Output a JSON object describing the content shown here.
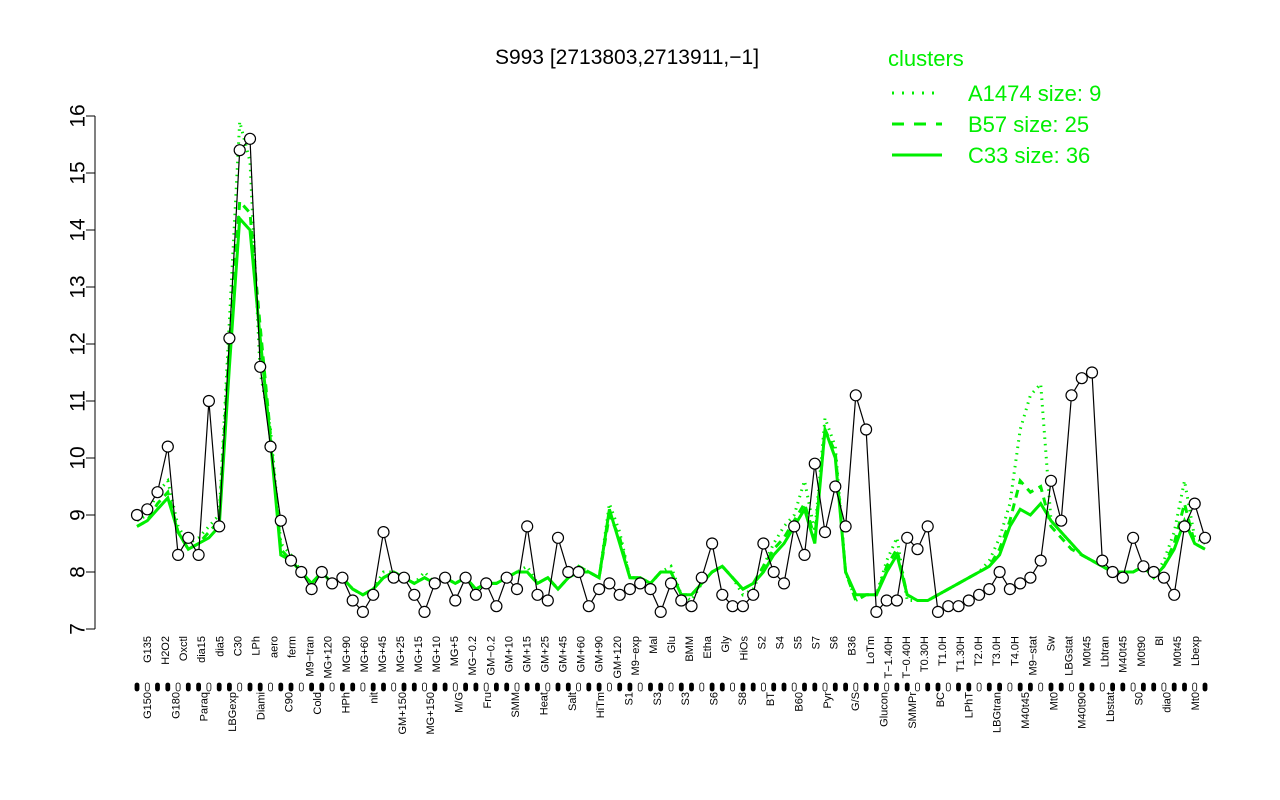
{
  "chart_data": {
    "type": "line",
    "title": "S993 [2713803,2713911,−1]",
    "xlabel": "",
    "ylabel": "",
    "ylim": [
      7,
      16
    ],
    "yticks": [
      7,
      8,
      9,
      10,
      11,
      12,
      13,
      14,
      15,
      16
    ],
    "x_tick_labels_top": [
      "G135",
      "H2O2",
      "Oxctl",
      "dia15",
      "dia5",
      "C30",
      "LPh",
      "aero",
      "ferm",
      "M9−tran",
      "MG+120",
      "MG+90",
      "MG+60",
      "MG+45",
      "MG+25",
      "MG+15",
      "MG+10",
      "MG+5",
      "MG−0.2",
      "GM−0.2",
      "GM+10",
      "GM+15",
      "GM+25",
      "GM+45",
      "GM+60",
      "GM+90",
      "GM+120",
      "M9−exp",
      "Mal",
      "Glu",
      "BMM",
      "Etha",
      "Gly",
      "HiOs",
      "S2",
      "S4",
      "S5",
      "S7",
      "S6",
      "B36",
      "LoTm",
      "T−1.40H",
      "T−0.40H",
      "T0.30H",
      "T1.0H",
      "T1.30H",
      "T2.0H",
      "T3.0H",
      "T4.0H",
      "M9−stat",
      "Sw",
      "LBGstat",
      "M0t45",
      "Lbtran",
      "M40t45",
      "M0t90",
      "Bl",
      "M0t45",
      "Lbexp"
    ],
    "x_tick_labels_bottom": [
      "G150",
      "G180",
      "Paraq",
      "LBGexp",
      "Diami",
      "C90",
      "Cold",
      "HPh",
      "nit",
      "GM+150",
      "MG+150",
      "M/G",
      "Fru",
      "SMM",
      "Heat",
      "Salt",
      "HiTm",
      "S1",
      "S3",
      "S3",
      "S6",
      "S8",
      "BT",
      "B60",
      "Pyr",
      "G/S",
      "Glucon",
      "SMMPr",
      "BC",
      "LPhT",
      "LBGtran",
      "M40t45",
      "Mt0",
      "M40t90",
      "Lbstat",
      "S0",
      "dia0",
      "Mt0"
    ],
    "series": [
      {
        "name": "A1474 size: 9",
        "style": "dotted",
        "values": [
          8.9,
          9.0,
          9.4,
          9.6,
          8.8,
          8.5,
          8.6,
          8.8,
          9.0,
          12.4,
          15.9,
          15.2,
          11.5,
          10.5,
          8.5,
          8.3,
          8.0,
          7.8,
          8.0,
          7.8,
          7.9,
          7.7,
          7.6,
          7.7,
          8.0,
          8.0,
          7.9,
          7.8,
          8.0,
          7.8,
          7.9,
          7.8,
          7.9,
          7.7,
          7.8,
          7.8,
          7.9,
          8.0,
          8.1,
          7.8,
          7.9,
          7.7,
          7.9,
          8.1,
          8.0,
          7.9,
          9.2,
          8.7,
          7.9,
          7.9,
          7.8,
          8.0,
          8.1,
          7.6,
          7.5,
          7.8,
          8.0,
          8.1,
          7.9,
          7.6,
          7.7,
          8.1,
          8.5,
          8.8,
          9.0,
          9.6,
          8.7,
          10.7,
          10.2,
          8.0,
          7.5,
          7.6,
          7.6,
          8.2,
          8.6,
          7.5,
          7.5,
          7.5,
          7.6,
          7.7,
          7.8,
          7.9,
          8.0,
          8.2,
          8.6,
          9.2,
          10.5,
          11.1,
          11.3,
          8.9,
          8.7,
          8.5,
          8.3,
          8.2,
          8.1,
          8.0,
          8.0,
          8.0,
          8.1,
          7.9,
          8.2,
          8.7,
          9.6,
          8.6,
          8.5
        ]
      },
      {
        "name": "B57 size: 25",
        "style": "dashed",
        "values": [
          8.8,
          8.9,
          9.2,
          9.4,
          8.7,
          8.4,
          8.5,
          8.7,
          8.9,
          12.0,
          14.5,
          14.3,
          12.3,
          10.4,
          8.4,
          8.2,
          8.0,
          7.8,
          8.0,
          7.8,
          7.9,
          7.7,
          7.6,
          7.7,
          7.9,
          8.0,
          7.9,
          7.8,
          7.9,
          7.8,
          7.9,
          7.8,
          7.9,
          7.7,
          7.8,
          7.8,
          7.9,
          8.0,
          8.0,
          7.8,
          7.9,
          7.7,
          7.9,
          8.1,
          8.0,
          7.9,
          9.0,
          8.6,
          7.9,
          7.9,
          7.8,
          8.0,
          8.0,
          7.6,
          7.6,
          7.8,
          8.0,
          8.1,
          7.9,
          7.7,
          7.8,
          8.1,
          8.4,
          8.6,
          8.9,
          9.2,
          8.6,
          10.5,
          10.1,
          8.0,
          7.5,
          7.6,
          7.6,
          8.1,
          8.4,
          7.6,
          7.5,
          7.5,
          7.6,
          7.7,
          7.8,
          7.9,
          8.0,
          8.1,
          8.4,
          8.9,
          9.6,
          9.4,
          9.5,
          8.8,
          8.6,
          8.4,
          8.3,
          8.2,
          8.1,
          8.0,
          8.0,
          8.0,
          8.1,
          7.9,
          8.1,
          8.5,
          9.2,
          8.5,
          8.4
        ]
      },
      {
        "name": "C33 size: 36",
        "style": "solid",
        "values": [
          8.8,
          8.9,
          9.1,
          9.3,
          8.7,
          8.4,
          8.5,
          8.6,
          8.8,
          11.6,
          14.2,
          14.0,
          12.1,
          10.3,
          8.3,
          8.2,
          8.0,
          7.8,
          8.0,
          7.8,
          7.9,
          7.7,
          7.6,
          7.7,
          7.9,
          8.0,
          7.9,
          7.8,
          7.9,
          7.8,
          7.9,
          7.8,
          7.9,
          7.7,
          7.8,
          7.8,
          7.9,
          8.0,
          8.0,
          7.8,
          7.9,
          7.7,
          7.9,
          8.0,
          8.0,
          7.9,
          9.1,
          8.5,
          7.9,
          7.9,
          7.8,
          8.0,
          8.0,
          7.6,
          7.6,
          7.8,
          8.0,
          8.1,
          7.9,
          7.7,
          7.8,
          8.0,
          8.3,
          8.5,
          8.8,
          9.1,
          8.5,
          10.5,
          10.0,
          8.0,
          7.6,
          7.6,
          7.6,
          8.0,
          8.3,
          7.6,
          7.5,
          7.5,
          7.6,
          7.7,
          7.8,
          7.9,
          8.0,
          8.1,
          8.3,
          8.8,
          9.1,
          9.0,
          9.2,
          8.9,
          8.7,
          8.5,
          8.3,
          8.2,
          8.1,
          8.0,
          8.0,
          8.0,
          8.1,
          7.9,
          8.1,
          8.4,
          8.9,
          8.5,
          8.4
        ]
      },
      {
        "name": "S993 probe",
        "style": "black-line-with-points",
        "values": [
          9.0,
          9.1,
          9.4,
          10.2,
          8.3,
          8.6,
          8.3,
          11.0,
          8.8,
          12.1,
          15.4,
          15.6,
          11.6,
          10.2,
          8.9,
          8.2,
          8.0,
          7.7,
          8.0,
          7.8,
          7.9,
          7.5,
          7.3,
          7.6,
          8.7,
          7.9,
          7.9,
          7.6,
          7.3,
          7.8,
          7.9,
          7.5,
          7.9,
          7.6,
          7.8,
          7.4,
          7.9,
          7.7,
          8.8,
          7.6,
          7.5,
          8.6,
          8.0,
          8.0,
          7.4,
          7.7,
          7.8,
          7.6,
          7.7,
          7.8,
          7.7,
          7.3,
          7.8,
          7.5,
          7.4,
          7.9,
          8.5,
          7.6,
          7.4,
          7.4,
          7.6,
          8.5,
          8.0,
          7.8,
          8.8,
          8.3,
          9.9,
          8.7,
          9.5,
          8.8,
          11.1,
          10.5,
          7.3,
          7.5,
          7.5,
          8.6,
          8.4,
          8.8,
          7.3,
          7.4,
          7.4,
          7.5,
          7.6,
          7.7,
          8.0,
          7.7,
          7.8,
          7.9,
          8.2,
          9.6,
          8.9,
          11.1,
          11.4,
          11.5,
          8.2,
          8.0,
          7.9,
          8.6,
          8.1,
          8.0,
          7.9,
          7.6,
          8.8,
          9.2,
          8.6
        ]
      }
    ],
    "legend": {
      "title": "clusters",
      "entries": [
        "A1474 size: 9",
        "B57 size: 25",
        "C33 size: 36"
      ],
      "placement": "top-right"
    },
    "colors": {
      "cluster": "#00ee00",
      "probe": "#000000",
      "point_fill": "#ffffff"
    }
  }
}
